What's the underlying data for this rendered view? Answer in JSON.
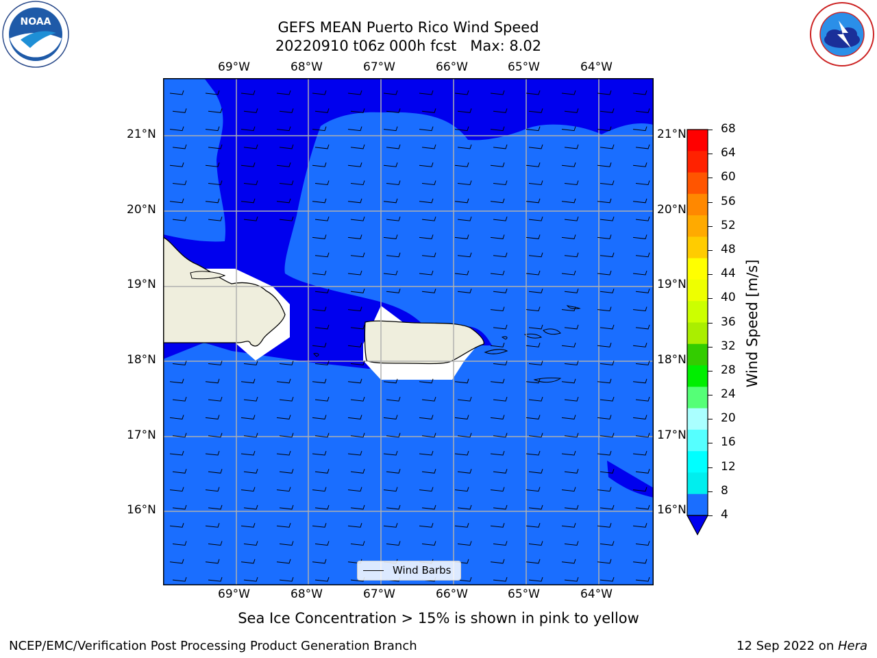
{
  "header": {
    "title_line1": "GEFS MEAN Puerto Rico Wind Speed",
    "title_line2": "20220910 t06z 000h fcst   Max: 8.02"
  },
  "logos": {
    "left": "NOAA",
    "left_ring_text": "NATIONAL OCEANIC AND ATMOSPHERIC ADMINISTRATION · U.S. DEPARTMENT OF COMMERCE",
    "right_ring_text": "NATIONAL WEATHER SERVICE",
    "left_icon": "noaa-logo-icon",
    "right_icon": "nws-logo-icon"
  },
  "map": {
    "lon_labels": [
      "69°W",
      "68°W",
      "67°W",
      "66°W",
      "65°W",
      "64°W"
    ],
    "lat_labels": [
      "21°N",
      "20°N",
      "19°N",
      "18°N",
      "17°N",
      "16°N"
    ],
    "legend_label": "Wind Barbs",
    "land_color": "#efeedd",
    "field_color": "#1a6eff",
    "dark_field_color": "#0000ee",
    "grid_color": "#b0b0b0"
  },
  "colorbar": {
    "label": "Wind Speed [m/s]",
    "ticks": [
      "68",
      "64",
      "60",
      "56",
      "52",
      "48",
      "44",
      "40",
      "36",
      "32",
      "28",
      "24",
      "20",
      "16",
      "12",
      "8",
      "4"
    ],
    "colors_top_to_bottom": [
      "#ff0000",
      "#ff2200",
      "#ff5500",
      "#ff8800",
      "#ffaa00",
      "#ffcc00",
      "#ffff00",
      "#eeff00",
      "#ccff00",
      "#aaee00",
      "#33cc00",
      "#00ee00",
      "#55ff77",
      "#aaffff",
      "#55ffff",
      "#00ffff",
      "#00eeee",
      "#1a6eff"
    ],
    "extend_color": "#0000ee"
  },
  "caption": "Sea Ice Concentration > 15% is shown in pink to yellow",
  "footer": {
    "left": "NCEP/EMC/Verification Post Processing Product Generation Branch",
    "right_date": "12 Sep 2022 on ",
    "right_machine": "Hera"
  }
}
